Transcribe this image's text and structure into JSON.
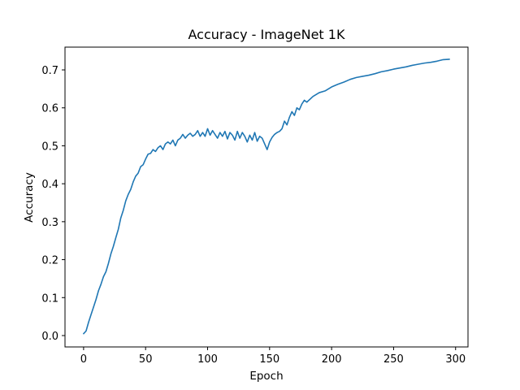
{
  "chart_data": {
    "type": "line",
    "title": "Accuracy - ImageNet 1K",
    "xlabel": "Epoch",
    "ylabel": "Accuracy",
    "xlim": [
      -15,
      310
    ],
    "ylim": [
      -0.03,
      0.76
    ],
    "x_ticks": [
      0,
      50,
      100,
      150,
      200,
      250,
      300
    ],
    "y_ticks": [
      0.0,
      0.1,
      0.2,
      0.3,
      0.4,
      0.5,
      0.6,
      0.7
    ],
    "x_tick_labels": [
      "0",
      "50",
      "100",
      "150",
      "200",
      "250",
      "300"
    ],
    "y_tick_labels": [
      "0.0",
      "0.1",
      "0.2",
      "0.3",
      "0.4",
      "0.5",
      "0.6",
      "0.7"
    ],
    "grid": false,
    "legend": "none",
    "series_color": "#1f77b4",
    "series": [
      {
        "x": [
          0,
          2,
          4,
          6,
          8,
          10,
          12,
          14,
          16,
          18,
          20,
          22,
          24,
          26,
          28,
          30,
          32,
          34,
          36,
          38,
          40,
          42,
          44,
          46,
          48,
          50,
          52,
          54,
          56,
          58,
          60,
          62,
          64,
          66,
          68,
          70,
          72,
          74,
          76,
          78,
          80,
          82,
          84,
          86,
          88,
          90,
          92,
          94,
          96,
          98,
          100,
          102,
          104,
          106,
          108,
          110,
          112,
          114,
          116,
          118,
          120,
          122,
          124,
          126,
          128,
          130,
          132,
          134,
          136,
          138,
          140,
          142,
          144,
          146,
          148,
          150,
          152,
          154,
          156,
          158,
          160,
          162,
          164,
          166,
          168,
          170,
          172,
          174,
          176,
          178,
          180,
          185,
          190,
          195,
          200,
          205,
          210,
          215,
          220,
          225,
          230,
          235,
          240,
          245,
          250,
          255,
          260,
          265,
          270,
          275,
          280,
          285,
          290,
          295
        ],
        "y": [
          0.005,
          0.012,
          0.035,
          0.055,
          0.075,
          0.095,
          0.118,
          0.135,
          0.155,
          0.168,
          0.19,
          0.215,
          0.235,
          0.258,
          0.28,
          0.31,
          0.33,
          0.355,
          0.372,
          0.385,
          0.405,
          0.42,
          0.428,
          0.445,
          0.45,
          0.465,
          0.478,
          0.48,
          0.49,
          0.485,
          0.495,
          0.5,
          0.49,
          0.505,
          0.51,
          0.505,
          0.515,
          0.5,
          0.515,
          0.52,
          0.53,
          0.52,
          0.528,
          0.533,
          0.525,
          0.53,
          0.54,
          0.525,
          0.535,
          0.525,
          0.545,
          0.528,
          0.54,
          0.53,
          0.52,
          0.535,
          0.525,
          0.538,
          0.518,
          0.535,
          0.528,
          0.515,
          0.538,
          0.52,
          0.535,
          0.525,
          0.51,
          0.528,
          0.515,
          0.535,
          0.512,
          0.525,
          0.52,
          0.505,
          0.49,
          0.51,
          0.522,
          0.53,
          0.535,
          0.538,
          0.545,
          0.565,
          0.555,
          0.575,
          0.59,
          0.58,
          0.6,
          0.595,
          0.61,
          0.62,
          0.615,
          0.63,
          0.64,
          0.645,
          0.655,
          0.662,
          0.668,
          0.675,
          0.68,
          0.683,
          0.686,
          0.69,
          0.695,
          0.698,
          0.702,
          0.705,
          0.708,
          0.712,
          0.715,
          0.718,
          0.72,
          0.723,
          0.727,
          0.728
        ]
      }
    ]
  }
}
